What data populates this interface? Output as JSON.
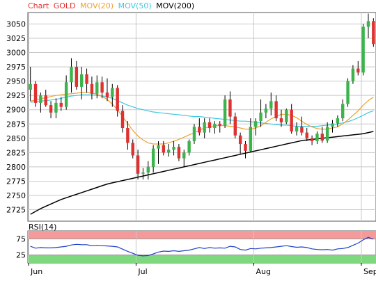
{
  "legend": {
    "chart": "Chart",
    "symbol": "GOLD",
    "mov20": "MOV(20)",
    "mov50": "MOV(50)",
    "mov200": "MOV(200)"
  },
  "rsi_label": "RSI(14)",
  "colors": {
    "up": "#3cb44b",
    "down": "#e03030",
    "wick": "#000000",
    "mov20": "#f0a030",
    "mov50": "#40c8e0",
    "mov200": "#000000",
    "rsi_line": "#1f3fc8",
    "rsi_high_zone": "#f59a9a",
    "rsi_low_zone": "#7ed87e",
    "grid": "#c8c8c8",
    "label_red": "#e03030"
  },
  "chart_data": [
    {
      "type": "candlestick",
      "title": "GOLD",
      "y_ticks": [
        2725,
        2750,
        2775,
        2800,
        2825,
        2850,
        2875,
        2900,
        2925,
        2950,
        2975,
        3000,
        3025,
        3050
      ],
      "ylim": [
        2705,
        3070
      ],
      "x_ticks": [
        "Jun",
        "Jul",
        "Aug",
        "Sep"
      ],
      "x_tick_index": [
        0,
        21,
        44,
        65
      ],
      "grid": true,
      "candles": [
        [
          2935,
          2975,
          2915,
          2945
        ],
        [
          2945,
          2950,
          2905,
          2912
        ],
        [
          2912,
          2930,
          2895,
          2925
        ],
        [
          2925,
          2935,
          2905,
          2908
        ],
        [
          2908,
          2915,
          2885,
          2895
        ],
        [
          2895,
          2920,
          2885,
          2912
        ],
        [
          2912,
          2922,
          2898,
          2905
        ],
        [
          2905,
          2960,
          2900,
          2948
        ],
        [
          2948,
          2990,
          2930,
          2975
        ],
        [
          2975,
          2985,
          2935,
          2940
        ],
        [
          2940,
          2975,
          2918,
          2962
        ],
        [
          2962,
          2972,
          2930,
          2945
        ],
        [
          2945,
          2958,
          2918,
          2928
        ],
        [
          2928,
          2960,
          2920,
          2948
        ],
        [
          2948,
          2958,
          2920,
          2930
        ],
        [
          2930,
          2955,
          2915,
          2922
        ],
        [
          2922,
          2945,
          2905,
          2938
        ],
        [
          2938,
          2943,
          2888,
          2898
        ],
        [
          2898,
          2908,
          2860,
          2868
        ],
        [
          2868,
          2880,
          2830,
          2842
        ],
        [
          2842,
          2848,
          2815,
          2820
        ],
        [
          2820,
          2830,
          2778,
          2788
        ],
        [
          2788,
          2798,
          2778,
          2790
        ],
        [
          2790,
          2810,
          2778,
          2800
        ],
        [
          2800,
          2838,
          2790,
          2832
        ],
        [
          2832,
          2845,
          2805,
          2838
        ],
        [
          2838,
          2845,
          2820,
          2825
        ],
        [
          2825,
          2840,
          2818,
          2830
        ],
        [
          2830,
          2845,
          2820,
          2835
        ],
        [
          2835,
          2840,
          2810,
          2815
        ],
        [
          2815,
          2830,
          2800,
          2825
        ],
        [
          2825,
          2848,
          2820,
          2845
        ],
        [
          2845,
          2875,
          2840,
          2870
        ],
        [
          2870,
          2885,
          2855,
          2860
        ],
        [
          2860,
          2885,
          2850,
          2878
        ],
        [
          2878,
          2885,
          2860,
          2868
        ],
        [
          2868,
          2880,
          2858,
          2875
        ],
        [
          2875,
          2880,
          2860,
          2872
        ],
        [
          2872,
          2925,
          2868,
          2918
        ],
        [
          2918,
          2932,
          2875,
          2888
        ],
        [
          2888,
          2895,
          2850,
          2855
        ],
        [
          2855,
          2860,
          2822,
          2840
        ],
        [
          2840,
          2845,
          2815,
          2828
        ],
        [
          2828,
          2885,
          2825,
          2870
        ],
        [
          2870,
          2885,
          2855,
          2880
        ],
        [
          2880,
          2918,
          2870,
          2895
        ],
        [
          2895,
          2910,
          2885,
          2902
        ],
        [
          2902,
          2930,
          2890,
          2915
        ],
        [
          2915,
          2925,
          2880,
          2885
        ],
        [
          2885,
          2900,
          2870,
          2878
        ],
        [
          2878,
          2902,
          2875,
          2900
        ],
        [
          2900,
          2910,
          2858,
          2862
        ],
        [
          2862,
          2878,
          2855,
          2870
        ],
        [
          2870,
          2888,
          2855,
          2860
        ],
        [
          2860,
          2868,
          2845,
          2850
        ],
        [
          2850,
          2855,
          2838,
          2845
        ],
        [
          2845,
          2862,
          2840,
          2858
        ],
        [
          2858,
          2870,
          2842,
          2846
        ],
        [
          2846,
          2878,
          2842,
          2870
        ],
        [
          2870,
          2882,
          2860,
          2876
        ],
        [
          2876,
          2890,
          2870,
          2885
        ],
        [
          2885,
          2918,
          2880,
          2910
        ],
        [
          2910,
          2955,
          2905,
          2950
        ],
        [
          2950,
          2978,
          2945,
          2972
        ],
        [
          2972,
          2985,
          2960,
          2965
        ],
        [
          2965,
          3050,
          2960,
          3045
        ],
        [
          3045,
          3068,
          3025,
          3055
        ],
        [
          3055,
          3060,
          3010,
          3015
        ]
      ],
      "mov20": [
        2915,
        2917,
        2919,
        2921,
        2923,
        2925,
        2926,
        2927,
        2928,
        2929,
        2930,
        2930,
        2929,
        2927,
        2923,
        2918,
        2910,
        2900,
        2888,
        2876,
        2864,
        2854,
        2847,
        2842,
        2840,
        2840,
        2840,
        2842,
        2845,
        2848,
        2852,
        2856,
        2860,
        2864,
        2868,
        2870,
        2872,
        2872,
        2872,
        2871,
        2870,
        2868,
        2866,
        2866,
        2868,
        2872,
        2878,
        2884,
        2888,
        2892,
        2892,
        2890,
        2886,
        2880,
        2874,
        2870,
        2867,
        2866,
        2866,
        2868,
        2870,
        2875,
        2882,
        2890,
        2898,
        2908,
        2916,
        2922
      ],
      "mov50": [
        2913,
        2914,
        2915,
        2916,
        2917,
        2918,
        2920,
        2922,
        2924,
        2925,
        2926,
        2926,
        2926,
        2925,
        2924,
        2922,
        2920,
        2916,
        2912,
        2908,
        2905,
        2902,
        2900,
        2898,
        2896,
        2895,
        2894,
        2893,
        2892,
        2891,
        2890,
        2889,
        2888,
        2888,
        2887,
        2886,
        2885,
        2884,
        2883,
        2882,
        2881,
        2880,
        2880,
        2879,
        2878,
        2877,
        2876,
        2875,
        2874,
        2873,
        2873,
        2872,
        2871,
        2871,
        2871,
        2871,
        2871,
        2872,
        2873,
        2874,
        2875,
        2877,
        2879,
        2882,
        2886,
        2890,
        2895,
        2898
      ],
      "mov200": [
        2717,
        2722,
        2727,
        2731,
        2735,
        2739,
        2743,
        2746,
        2749,
        2752,
        2755,
        2758,
        2761,
        2764,
        2767,
        2770,
        2772,
        2774,
        2776,
        2778,
        2780,
        2782,
        2784,
        2786,
        2788,
        2790,
        2792,
        2794,
        2796,
        2798,
        2800,
        2802,
        2804,
        2806,
        2808,
        2810,
        2812,
        2814,
        2816,
        2818,
        2820,
        2822,
        2824,
        2826,
        2828,
        2830,
        2832,
        2834,
        2836,
        2838,
        2840,
        2842,
        2844,
        2846,
        2847,
        2848,
        2849,
        2850,
        2851,
        2852,
        2853,
        2854,
        2855,
        2856,
        2857,
        2858,
        2860,
        2862
      ]
    },
    {
      "type": "line",
      "title": "RSI(14)",
      "y_ticks": [
        25,
        75
      ],
      "ylim": [
        0,
        100
      ],
      "overbought": 75,
      "oversold": 25,
      "values": [
        52,
        46,
        48,
        47,
        47,
        48,
        50,
        52,
        56,
        58,
        57,
        57,
        54,
        55,
        54,
        53,
        52,
        50,
        43,
        36,
        30,
        24,
        22,
        23,
        28,
        34,
        37,
        36,
        38,
        36,
        38,
        40,
        44,
        48,
        45,
        48,
        46,
        47,
        46,
        52,
        50,
        42,
        40,
        45,
        44,
        46,
        47,
        48,
        50,
        52,
        54,
        51,
        49,
        50,
        48,
        44,
        42,
        41,
        42,
        40,
        44,
        45,
        48,
        55,
        62,
        72,
        80,
        74
      ]
    }
  ]
}
